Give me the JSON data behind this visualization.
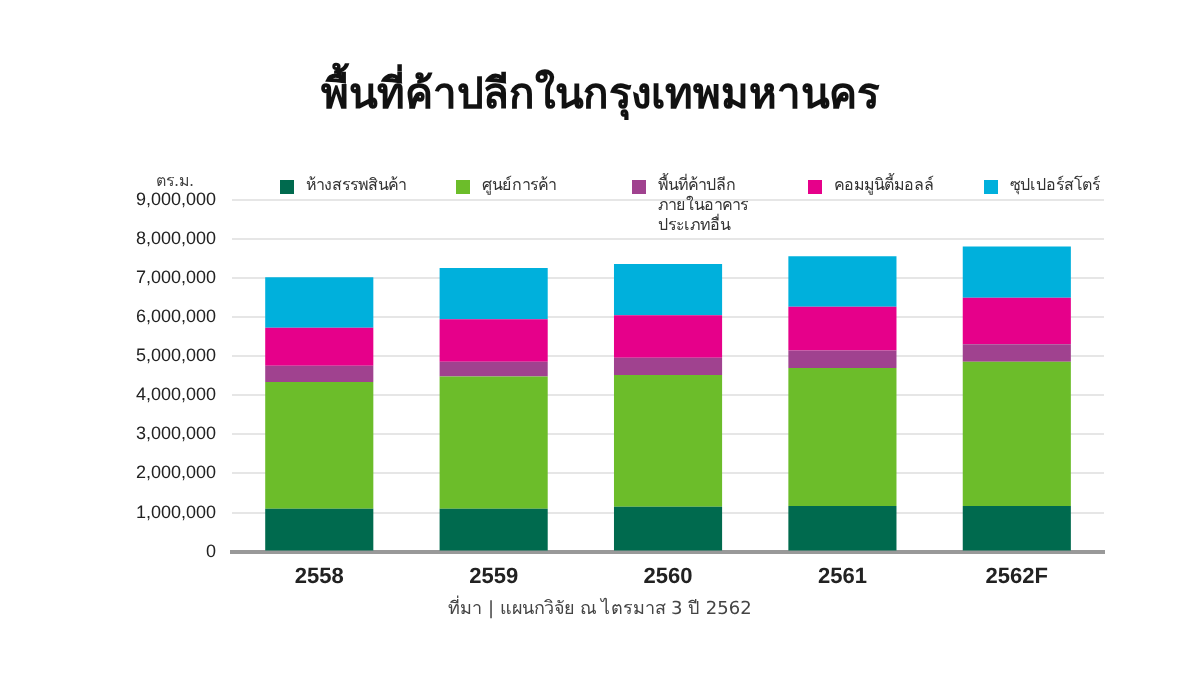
{
  "chart_data": {
    "type": "bar",
    "title": "พื้นที่ค้าปลีกในกรุงเทพมหานคร",
    "ylabel": "ตร.ม.",
    "stacked": true,
    "categories": [
      "2558",
      "2559",
      "2560",
      "2561",
      "2562F"
    ],
    "series": [
      {
        "name": "ห้างสรรพสินค้า",
        "color": "#006a4e",
        "values": [
          1100000,
          1100000,
          1150000,
          1170000,
          1170000
        ]
      },
      {
        "name": "ศูนย์การค้า",
        "color": "#6cbd2a",
        "values": [
          3240000,
          3380000,
          3370000,
          3530000,
          3690000
        ]
      },
      {
        "name": "พื้นที่ค้าปลีก ภายในอาคาร ประเภทอื่น",
        "color": "#a0428f",
        "values": [
          420000,
          380000,
          440000,
          450000,
          450000
        ]
      },
      {
        "name": "คอมมูนิตี้มอลล์",
        "color": "#e6008a",
        "values": [
          970000,
          1090000,
          1090000,
          1120000,
          1190000
        ]
      },
      {
        "name": "ซุปเปอร์สโตร์",
        "color": "#00b0dc",
        "values": [
          1290000,
          1310000,
          1310000,
          1290000,
          1310000
        ]
      }
    ],
    "ylim": [
      0,
      9000000
    ],
    "yticks": [
      0,
      {
        "value": 1000000,
        "label": "1,000,000"
      },
      {
        "value": 2000000,
        "label": "2,000,000"
      },
      {
        "value": 3000000,
        "label": "3,000,000"
      },
      {
        "value": 4000000,
        "label": "4,000,000"
      },
      {
        "value": 5000000,
        "label": "5,000,000"
      },
      {
        "value": 6000000,
        "label": "6,000,000"
      },
      {
        "value": 7000000,
        "label": "7,000,000"
      },
      {
        "value": 8000000,
        "label": "8,000,000"
      },
      {
        "value": 9000000,
        "label": "9,000,000"
      }
    ],
    "grid": "y",
    "legend": "top",
    "annotations": [
      "ที่มา | แผนกวิจัย ณ ไตรมาส 3 ปี 2562"
    ]
  }
}
